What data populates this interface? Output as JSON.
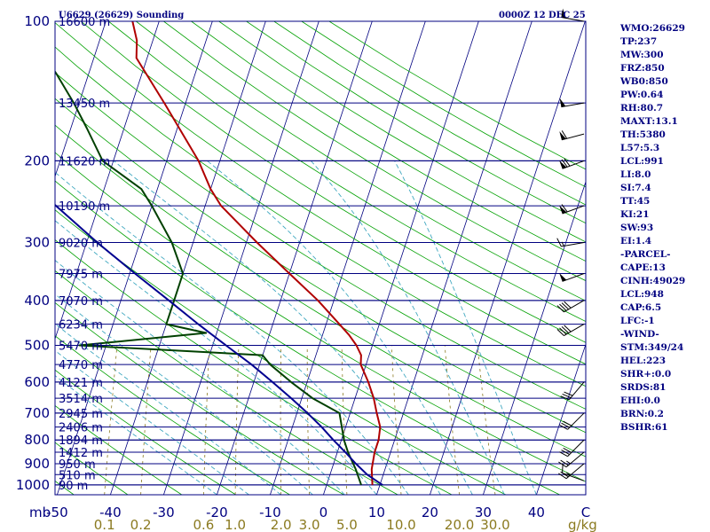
{
  "chart_data": {
    "type": "line",
    "title": "U6629 (26629) Sounding",
    "valid_time": "0000Z 12 DEC 25",
    "xlabel": "°C",
    "ylabel": "mb",
    "xunit_label": "mb",
    "mixing_ratio_unit": "g/kg",
    "pressure_levels": [
      100,
      200,
      300,
      400,
      500,
      600,
      700,
      800,
      900,
      1000
    ],
    "pressure_tick_labels": [
      "100",
      "200",
      "300",
      "400",
      "500",
      "600",
      "700",
      "800",
      "900",
      "1000"
    ],
    "temperature_ticks": [
      -50,
      -40,
      -30,
      -20,
      -10,
      0,
      10,
      20,
      30,
      40
    ],
    "temperature_tick_labels": [
      "-50",
      "-40",
      "-30",
      "-20",
      "-10",
      "0",
      "10",
      "20",
      "30",
      "40"
    ],
    "temperature_end_label": "C",
    "mixing_ratio_values": [
      0.1,
      0.2,
      0.6,
      1.0,
      2.0,
      3.0,
      5.0,
      10.0,
      20.0,
      30.0
    ],
    "mixing_ratio_labels": [
      "0.1",
      "0.2",
      "0.6",
      "1.0",
      "2.0",
      "3.0",
      "5.0",
      "10.0",
      "20.0",
      "30.0"
    ],
    "height_labels": [
      {
        "p": 100,
        "label": "16600 m"
      },
      {
        "p": 150,
        "label": "13450 m"
      },
      {
        "p": 200,
        "label": "11620 m"
      },
      {
        "p": 250,
        "label": "10190 m"
      },
      {
        "p": 300,
        "label": "9020 m"
      },
      {
        "p": 350,
        "label": "7975 m"
      },
      {
        "p": 400,
        "label": "7070 m"
      },
      {
        "p": 450,
        "label": "6234 m"
      },
      {
        "p": 500,
        "label": "5470 m"
      },
      {
        "p": 550,
        "label": "4770 m"
      },
      {
        "p": 600,
        "label": "4121 m"
      },
      {
        "p": 650,
        "label": "3514 m"
      },
      {
        "p": 700,
        "label": "2945 m"
      },
      {
        "p": 750,
        "label": "2406 m"
      },
      {
        "p": 800,
        "label": "1894 m"
      },
      {
        "p": 850,
        "label": "1412 m"
      },
      {
        "p": 900,
        "label": "950 m"
      },
      {
        "p": 950,
        "label": "510 m"
      },
      {
        "p": 1000,
        "label": "90 m"
      }
    ],
    "series": [
      {
        "name": "Temperature",
        "color": "#b00000",
        "points": [
          [
            1000,
            8.6
          ],
          [
            925,
            7.5
          ],
          [
            850,
            7.0
          ],
          [
            800,
            7.0
          ],
          [
            750,
            6.5
          ],
          [
            700,
            5.0
          ],
          [
            650,
            3.5
          ],
          [
            600,
            1.5
          ],
          [
            550,
            -1.0
          ],
          [
            525,
            -1.5
          ],
          [
            500,
            -3.0
          ],
          [
            475,
            -5.0
          ],
          [
            450,
            -7.5
          ],
          [
            400,
            -13.0
          ],
          [
            350,
            -20.0
          ],
          [
            300,
            -28.0
          ],
          [
            250,
            -37.0
          ],
          [
            230,
            -40.0
          ],
          [
            200,
            -44.0
          ],
          [
            150,
            -54.0
          ],
          [
            120,
            -62.0
          ],
          [
            110,
            -63.0
          ],
          [
            100,
            -65.0
          ]
        ]
      },
      {
        "name": "Dewpoint",
        "color": "#004000",
        "points": [
          [
            1000,
            6.5
          ],
          [
            925,
            4.5
          ],
          [
            850,
            2.0
          ],
          [
            800,
            0.5
          ],
          [
            700,
            -2.0
          ],
          [
            650,
            -8.0
          ],
          [
            600,
            -13.0
          ],
          [
            550,
            -18.0
          ],
          [
            525,
            -20.0
          ],
          [
            500,
            -55.0
          ],
          [
            470,
            -32.0
          ],
          [
            450,
            -40.0
          ],
          [
            400,
            -40.0
          ],
          [
            350,
            -40.0
          ],
          [
            300,
            -44.0
          ],
          [
            250,
            -50.0
          ],
          [
            230,
            -53.0
          ],
          [
            200,
            -62.0
          ],
          [
            170,
            -67.0
          ],
          [
            150,
            -71.0
          ],
          [
            130,
            -76.0
          ],
          [
            120,
            -79.0
          ],
          [
            100,
            -83.0
          ]
        ]
      },
      {
        "name": "Parcel",
        "color": "#000090",
        "points": [
          [
            1000,
            10.5
          ],
          [
            950,
            7.0
          ],
          [
            900,
            4.2
          ],
          [
            850,
            1.5
          ],
          [
            800,
            -1.5
          ],
          [
            750,
            -4.5
          ],
          [
            700,
            -8.0
          ],
          [
            650,
            -12.0
          ],
          [
            600,
            -16.5
          ],
          [
            550,
            -21.5
          ],
          [
            500,
            -27.5
          ],
          [
            450,
            -34.0
          ],
          [
            400,
            -41.0
          ],
          [
            350,
            -49.0
          ],
          [
            300,
            -58.0
          ],
          [
            250,
            -68.0
          ],
          [
            200,
            -80.0
          ],
          [
            150,
            -95.0
          ],
          [
            100,
            -113.0
          ]
        ]
      }
    ],
    "wind_barbs": [
      {
        "p": 980,
        "dir": 290,
        "spd": 10
      },
      {
        "p": 900,
        "dir": 230,
        "spd": 25
      },
      {
        "p": 850,
        "dir": 230,
        "spd": 25
      },
      {
        "p": 800,
        "dir": 225,
        "spd": 30
      },
      {
        "p": 700,
        "dir": 225,
        "spd": 30
      },
      {
        "p": 600,
        "dir": 220,
        "spd": 30
      },
      {
        "p": 450,
        "dir": 240,
        "spd": 40
      },
      {
        "p": 400,
        "dir": 240,
        "spd": 40
      },
      {
        "p": 350,
        "dir": 250,
        "spd": 50
      },
      {
        "p": 300,
        "dir": 260,
        "spd": 15
      },
      {
        "p": 250,
        "dir": 250,
        "spd": 60
      },
      {
        "p": 200,
        "dir": 250,
        "spd": 70
      },
      {
        "p": 175,
        "dir": 255,
        "spd": 60
      },
      {
        "p": 150,
        "dir": 260,
        "spd": 50
      },
      {
        "p": 100,
        "dir": 280,
        "spd": 50
      }
    ],
    "colors": {
      "isobar": "#000080",
      "isotherm": "#000080",
      "dry_adiabat": "#00a000",
      "moist_adiabat": "#40a8c0",
      "mixing_ratio": "#8b7a20",
      "wind_barb": "#000000"
    }
  },
  "indices": [
    "WMO:26629",
    "TP:237",
    "MW:300",
    "FRZ:850",
    "WB0:850",
    "PW:0.64",
    "RH:80.7",
    "MAXT:13.1",
    "TH:5380",
    "L57:5.3",
    "LCL:991",
    "LI:8.0",
    "SI:7.4",
    "TT:45",
    "KI:21",
    "SW:93",
    "EI:1.4",
    "-PARCEL-",
    "CAPE:13",
    "CINH:49029",
    "LCL:948",
    "CAP:6.5",
    "LFC:-1",
    "-WIND-",
    "STM:349/24",
    "HEL:223",
    "SHR+:0.0",
    "SRDS:81",
    "EHI:0.0",
    "BRN:0.2",
    "BSHR:61"
  ]
}
